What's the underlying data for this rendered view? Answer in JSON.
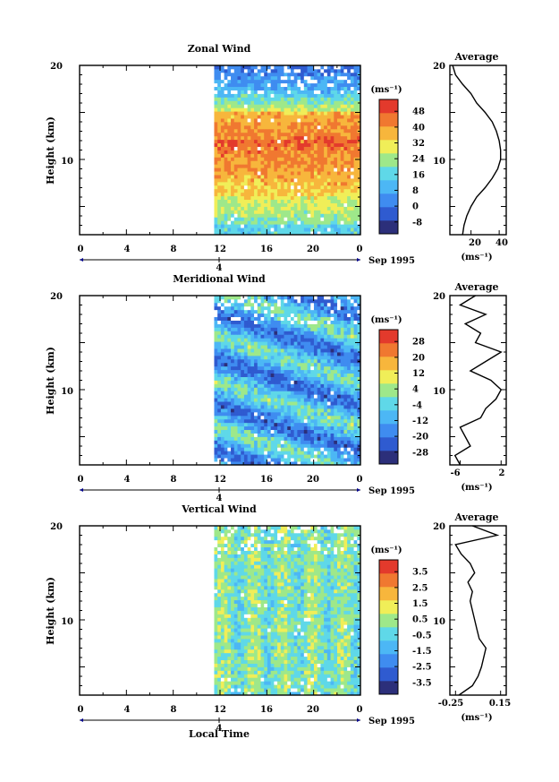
{
  "x_axis": {
    "ticks": [
      "0",
      "4",
      "8",
      "12",
      "16",
      "20",
      "0"
    ],
    "date_label": "Sep 1995",
    "day_label": "4",
    "xlabel": "Local Time"
  },
  "y_axis": {
    "label": "Height (km)",
    "ticks": [
      "10",
      "20"
    ]
  },
  "average_title": "Average",
  "units": "(ms⁻¹)",
  "chart_data": [
    {
      "type": "heatmap",
      "title": "Zonal Wind",
      "ylabel": "Height (km)",
      "xlabel": "",
      "xlim": [
        0,
        24
      ],
      "ylim": [
        2,
        20
      ],
      "data_start_hour": 11.5,
      "colorbar": {
        "title": "(ms⁻¹)",
        "ticks": [
          "-8",
          "0",
          "8",
          "16",
          "24",
          "32",
          "40",
          "48"
        ],
        "vmin": -12,
        "vmax": 52
      },
      "profile": {
        "title": "Average",
        "xlabel": "(ms⁻¹)",
        "xticks": [
          "20",
          "40"
        ],
        "xlim": [
          5,
          45
        ],
        "heights": [
          2,
          3,
          4,
          5,
          6,
          7,
          8,
          9,
          10,
          11,
          12,
          13,
          14,
          15,
          16,
          17,
          18,
          19,
          20
        ],
        "values": [
          14,
          15,
          17,
          20,
          24,
          30,
          35,
          39,
          41,
          41,
          40,
          38,
          35,
          30,
          24,
          20,
          14,
          9,
          7
        ]
      },
      "colors": [
        "#2c2f7a",
        "#2f5bd0",
        "#3f8cf0",
        "#4cb7f5",
        "#5fd8e8",
        "#9ee88a",
        "#f0ee58",
        "#f7b63c",
        "#f07830",
        "#e33a2c"
      ]
    },
    {
      "type": "heatmap",
      "title": "Meridional Wind",
      "ylabel": "Height (km)",
      "xlabel": "",
      "xlim": [
        0,
        24
      ],
      "ylim": [
        2,
        20
      ],
      "data_start_hour": 11.5,
      "colorbar": {
        "title": "(ms⁻¹)",
        "ticks": [
          "-28",
          "-20",
          "-12",
          "-4",
          "4",
          "12",
          "20",
          "28"
        ],
        "vmin": -32,
        "vmax": 32
      },
      "profile": {
        "title": "Average",
        "xlabel": "(ms⁻¹)",
        "xticks": [
          "-6",
          "2"
        ],
        "xlim": [
          -8,
          3
        ],
        "heights": [
          2,
          3,
          4,
          5,
          6,
          7,
          8,
          9,
          10,
          11,
          12,
          13,
          14,
          15,
          16,
          17,
          18,
          19,
          20
        ],
        "values": [
          -6,
          -7,
          -4,
          -5,
          -6,
          -2,
          -1,
          1,
          2,
          0,
          -4,
          -1,
          2,
          -3,
          -2,
          -5,
          -1,
          -6,
          -3
        ]
      },
      "colors": [
        "#2c2f7a",
        "#2f5bd0",
        "#3f8cf0",
        "#4cb7f5",
        "#5fd8e8",
        "#9ee88a",
        "#f0ee58",
        "#f7b63c",
        "#f07830",
        "#e33a2c"
      ]
    },
    {
      "type": "heatmap",
      "title": "Vertical Wind",
      "ylabel": "Height (km)",
      "xlabel": "Local Time",
      "xlim": [
        0,
        24
      ],
      "ylim": [
        2,
        20
      ],
      "data_start_hour": 11.5,
      "colorbar": {
        "title": "(ms⁻¹)",
        "ticks": [
          "-3.5",
          "-2.5",
          "-1.5",
          "-0.5",
          "0.5",
          "1.5",
          "2.5",
          "3.5"
        ],
        "vmin": -4,
        "vmax": 4
      },
      "profile": {
        "title": "Average",
        "xlabel": "(ms⁻¹)",
        "xticks": [
          "-0.25",
          "0.15"
        ],
        "xlim": [
          -0.3,
          0.2
        ],
        "heights": [
          2,
          3,
          4,
          5,
          6,
          7,
          8,
          9,
          10,
          11,
          12,
          13,
          14,
          15,
          16,
          17,
          18,
          19,
          20
        ],
        "values": [
          -0.22,
          -0.1,
          -0.05,
          -0.02,
          0.0,
          0.02,
          -0.04,
          -0.06,
          -0.08,
          -0.1,
          -0.12,
          -0.1,
          -0.14,
          -0.08,
          -0.12,
          -0.2,
          -0.25,
          0.12,
          -0.1
        ]
      },
      "colors": [
        "#2c2f7a",
        "#2f5bd0",
        "#3f8cf0",
        "#4cb7f5",
        "#5fd8e8",
        "#9ee88a",
        "#f0ee58",
        "#f7b63c",
        "#f07830",
        "#e33a2c"
      ]
    }
  ]
}
